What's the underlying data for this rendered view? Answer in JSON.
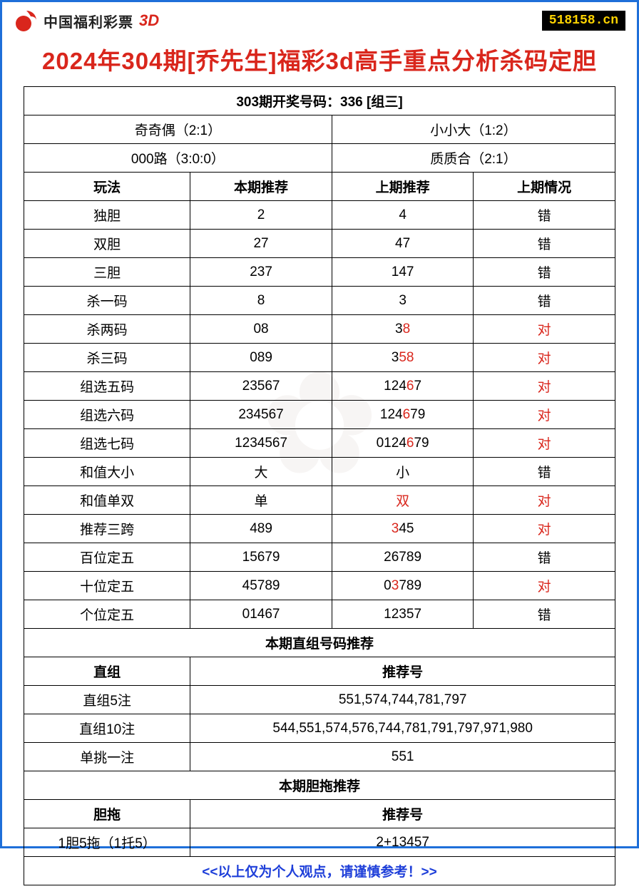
{
  "header": {
    "brand_text": "中国福利彩票",
    "brand_suffix": "3D",
    "site_badge": "518158.cn"
  },
  "title": "2024年304期[乔先生]福彩3d高手重点分析杀码定胆",
  "draw_result": "303期开奖号码：336 [组三]",
  "summary": {
    "left1": "奇奇偶（2:1）",
    "right1": "小小大（1:2）",
    "left2": "000路（3:0:0）",
    "right2": "质质合（2:1）"
  },
  "columns": [
    "玩法",
    "本期推荐",
    "上期推荐",
    "上期情况"
  ],
  "rows": [
    {
      "method": "独胆",
      "current": "2",
      "prev": "4",
      "prev_hl": [],
      "result": "错",
      "result_red": false
    },
    {
      "method": "双胆",
      "current": "27",
      "prev": "47",
      "prev_hl": [],
      "result": "错",
      "result_red": false
    },
    {
      "method": "三胆",
      "current": "237",
      "prev": "147",
      "prev_hl": [],
      "result": "错",
      "result_red": false
    },
    {
      "method": "杀一码",
      "current": "8",
      "prev": "3",
      "prev_hl": [],
      "result": "错",
      "result_red": false
    },
    {
      "method": "杀两码",
      "current": "08",
      "prev": "38",
      "prev_hl": [
        1
      ],
      "result": "对",
      "result_red": true
    },
    {
      "method": "杀三码",
      "current": "089",
      "prev": "358",
      "prev_hl": [
        1,
        2
      ],
      "result": "对",
      "result_red": true
    },
    {
      "method": "组选五码",
      "current": "23567",
      "prev": "12467",
      "prev_hl": [
        3
      ],
      "result": "对",
      "result_red": true
    },
    {
      "method": "组选六码",
      "current": "234567",
      "prev": "124679",
      "prev_hl": [
        3
      ],
      "result": "对",
      "result_red": true
    },
    {
      "method": "组选七码",
      "current": "1234567",
      "prev": "0124679",
      "prev_hl": [
        4
      ],
      "result": "对",
      "result_red": true
    },
    {
      "method": "和值大小",
      "current": "大",
      "prev": "小",
      "prev_hl": [],
      "result": "错",
      "result_red": false
    },
    {
      "method": "和值单双",
      "current": "单",
      "prev": "双",
      "prev_hl": [
        0
      ],
      "result": "对",
      "result_red": true
    },
    {
      "method": "推荐三跨",
      "current": "489",
      "prev": "345",
      "prev_hl": [
        0
      ],
      "result": "对",
      "result_red": true
    },
    {
      "method": "百位定五",
      "current": "15679",
      "prev": "26789",
      "prev_hl": [],
      "result": "错",
      "result_red": false
    },
    {
      "method": "十位定五",
      "current": "45789",
      "prev": "03789",
      "prev_hl": [
        1
      ],
      "result": "对",
      "result_red": true
    },
    {
      "method": "个位定五",
      "current": "01467",
      "prev": "12357",
      "prev_hl": [],
      "result": "错",
      "result_red": false
    }
  ],
  "section_direct_title": "本期直组号码推荐",
  "direct_header": {
    "left": "直组",
    "right": "推荐号"
  },
  "direct_rows": [
    {
      "label": "直组5注",
      "value": "551,574,744,781,797"
    },
    {
      "label": "直组10注",
      "value": "544,551,574,576,744,781,791,797,971,980"
    },
    {
      "label": "单挑一注",
      "value": "551"
    }
  ],
  "section_dantuo_title": "本期胆拖推荐",
  "dantuo_header": {
    "left": "胆拖",
    "right": "推荐号"
  },
  "dantuo_rows": [
    {
      "label": "1胆5拖（1托5）",
      "value": "2+13457"
    }
  ],
  "footer": "<<以上仅为个人观点，请谨慎参考！>>",
  "colors": {
    "border_blue": "#1e6fd9",
    "accent_red": "#d9261c",
    "badge_bg": "#000000",
    "badge_fg": "#ffd400",
    "footer_blue": "#1e3fd9",
    "cell_border": "#000000"
  }
}
